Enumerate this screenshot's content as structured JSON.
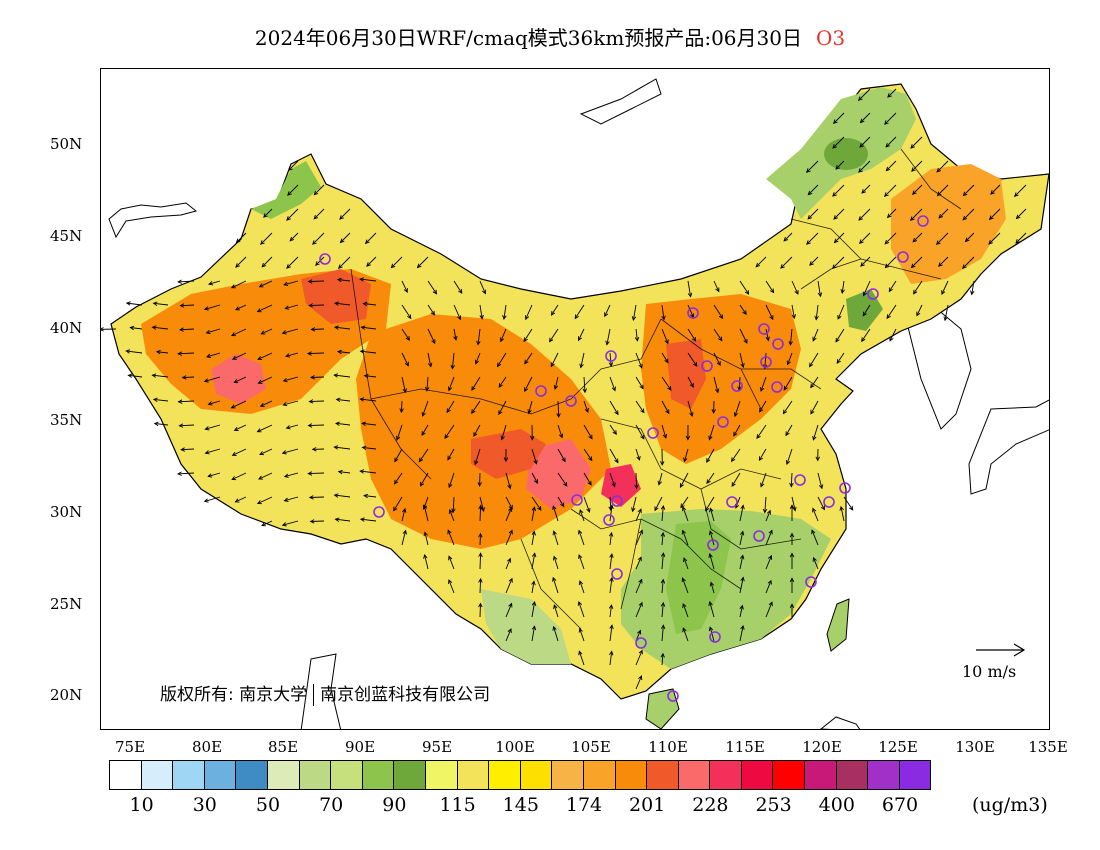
{
  "title": {
    "main": "2024年06月30日WRF/cmaq模式36km预报产品:06月30日",
    "species": "O3"
  },
  "map": {
    "lat_ticks": [
      "50N",
      "45N",
      "40N",
      "35N",
      "30N",
      "25N",
      "20N"
    ],
    "lon_ticks": [
      "75E",
      "80E",
      "85E",
      "90E",
      "95E",
      "100E",
      "105E",
      "110E",
      "115E",
      "120E",
      "125E",
      "130E",
      "135E"
    ],
    "copyright": {
      "prefix": "版权所有:",
      "org1": "南京大学",
      "org2": "南京创蓝科技有限公司"
    },
    "wind_reference": "10 m/s"
  },
  "colorbar": {
    "colors": [
      "#ffffff",
      "#d6eefb",
      "#9fd6f4",
      "#6bb0de",
      "#3f8cc4",
      "#dcebb8",
      "#bcd985",
      "#c5e07c",
      "#8cc44c",
      "#6ea83a",
      "#f0f566",
      "#f3e35a",
      "#ffee00",
      "#fde000",
      "#f8b346",
      "#f9a428",
      "#f98b0b",
      "#f05a2a",
      "#fb6a6a",
      "#f2305a",
      "#ee0a40",
      "#fe0000",
      "#c81878",
      "#a83060",
      "#a030c8",
      "#8a2be2"
    ],
    "labels": [
      "10",
      "30",
      "50",
      "70",
      "90",
      "115",
      "145",
      "174",
      "201",
      "228",
      "253",
      "400",
      "670"
    ],
    "unit": "(ug/m3)"
  },
  "markers": {
    "stations_color": "#8b2be2"
  }
}
